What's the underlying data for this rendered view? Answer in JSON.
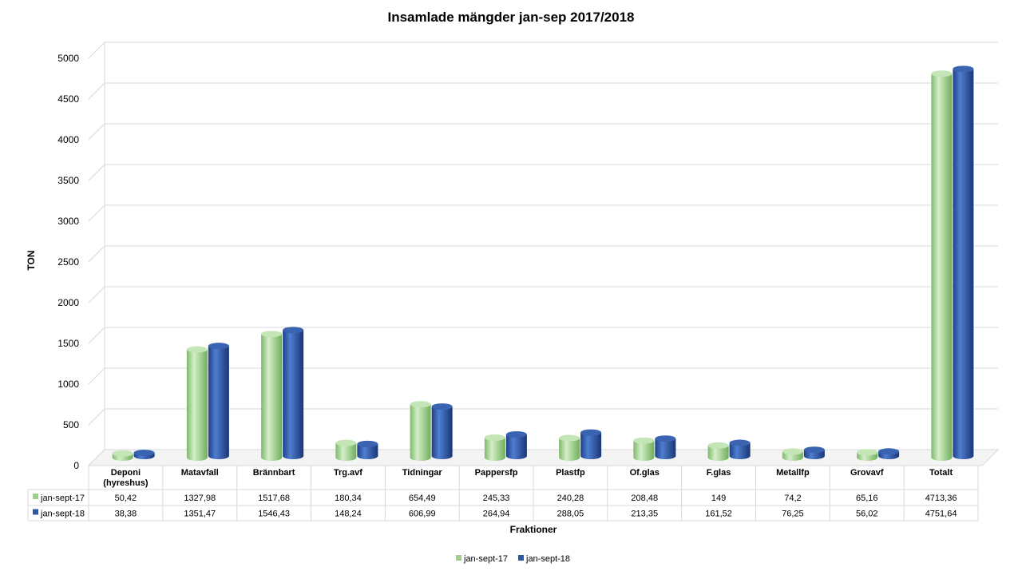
{
  "chart_data": {
    "type": "bar",
    "title": "Insamlade mängder jan-sep 2017/2018",
    "xlabel": "Fraktioner",
    "ylabel": "TON",
    "ylim": [
      0,
      5000
    ],
    "yticks": [
      0,
      500,
      1000,
      1500,
      2000,
      2500,
      3000,
      3500,
      4000,
      4500,
      5000
    ],
    "grid": true,
    "legend_position": "bottom",
    "categories": [
      "Deponi (hyreshus)",
      "Matavfall",
      "Brännbart",
      "Trg.avf",
      "Tidningar",
      "Pappersfp",
      "Plastfp",
      "Of.glas",
      "F.glas",
      "Metallfp",
      "Grovavf",
      "Totalt"
    ],
    "series": [
      {
        "name": "jan-sept-17",
        "color": "#9bd08a",
        "values": [
          50.42,
          1327.98,
          1517.68,
          180.34,
          654.49,
          245.33,
          240.28,
          208.48,
          149,
          74.2,
          65.16,
          4713.36
        ],
        "labels": [
          "50,42",
          "1327,98",
          "1517,68",
          "180,34",
          "654,49",
          "245,33",
          "240,28",
          "208,48",
          "149",
          "74,2",
          "65,16",
          "4713,36"
        ]
      },
      {
        "name": "jan-sept-18",
        "color": "#2e58a6",
        "values": [
          38.38,
          1351.47,
          1546.43,
          148.24,
          606.99,
          264.94,
          288.05,
          213.35,
          161.52,
          76.25,
          56.02,
          4751.64
        ],
        "labels": [
          "38,38",
          "1351,47",
          "1546,43",
          "148,24",
          "606,99",
          "264,94",
          "288,05",
          "213,35",
          "161,52",
          "76,25",
          "56,02",
          "4751,64"
        ]
      }
    ]
  }
}
